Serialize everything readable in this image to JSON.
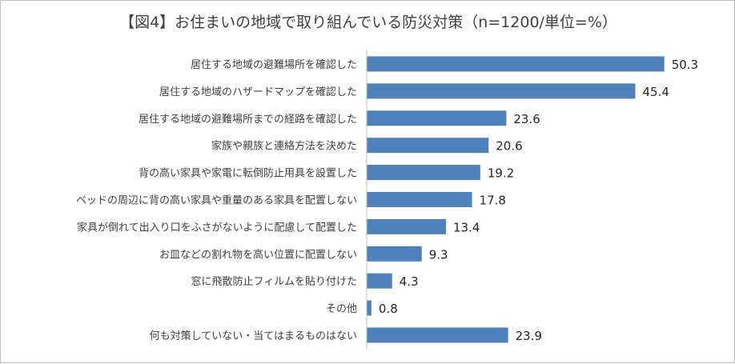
{
  "chart_data": {
    "type": "bar",
    "orientation": "horizontal",
    "title": "【図4】お住まいの地域で取り組んでいる防災対策（n=1200/単位=%）",
    "xlabel": "",
    "ylabel": "",
    "xlim": [
      0,
      55
    ],
    "grid": false,
    "legend": "none",
    "categories": [
      "居住する地域の避難場所を確認した",
      "居住する地域のハザードマップを確認した",
      "居住する地域の避難場所までの経路を確認した",
      "家族や親族と連絡方法を決めた",
      "背の高い家具や家電に転倒防止用具を設置した",
      "ベッドの周辺に背の高い家具や重量のある家具を配置しない",
      "家具が倒れて出入り口をふさがないように配慮して配置した",
      "お皿などの割れ物を高い位置に配置しない",
      "窓に飛散防止フィルムを貼り付けた",
      "その他",
      "何も対策していない・当てはまるものはない"
    ],
    "values": [
      50.3,
      45.4,
      23.6,
      20.6,
      19.2,
      17.8,
      13.4,
      9.3,
      4.3,
      0.8,
      23.9
    ],
    "value_labels": [
      "50.3",
      "45.4",
      "23.6",
      "20.6",
      "19.2",
      "17.8",
      "13.4",
      "9.3",
      "4.3",
      "0.8",
      "23.9"
    ],
    "bar_color": "#4f81bd",
    "axis_color": "#bfbfbf"
  }
}
